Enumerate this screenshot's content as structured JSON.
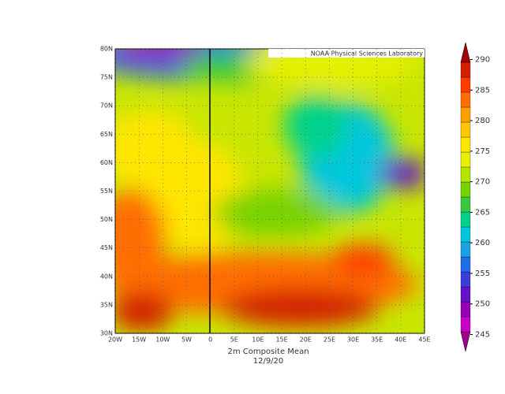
{
  "map": {
    "credit": "NOAA Physical Sciences Laboratory",
    "title": "2m    Composite Mean",
    "date": "12/9/20",
    "lat_labels": [
      "30N",
      "35N",
      "40N",
      "45N",
      "50N",
      "55N",
      "60N",
      "65N",
      "70N",
      "75N",
      "80N"
    ],
    "lon_labels": [
      "20W",
      "15W",
      "10W",
      "5W",
      "0",
      "5E",
      "10E",
      "15E",
      "20E",
      "25E",
      "30E",
      "35E",
      "40E",
      "45E"
    ]
  },
  "colorbar": {
    "ticks": [
      245,
      250,
      255,
      260,
      265,
      270,
      275,
      280,
      285,
      290
    ],
    "range": [
      243,
      292
    ],
    "colors": [
      "#a0008c",
      "#c800c8",
      "#9600b4",
      "#6414c8",
      "#3c3cdc",
      "#1e6ee6",
      "#1ea0e6",
      "#00c8dc",
      "#00d28c",
      "#3cc83c",
      "#78d200",
      "#b4e600",
      "#e6f000",
      "#ffe600",
      "#ffc800",
      "#ffa000",
      "#ff6e00",
      "#ff3c00",
      "#d42000",
      "#a50000"
    ]
  }
}
